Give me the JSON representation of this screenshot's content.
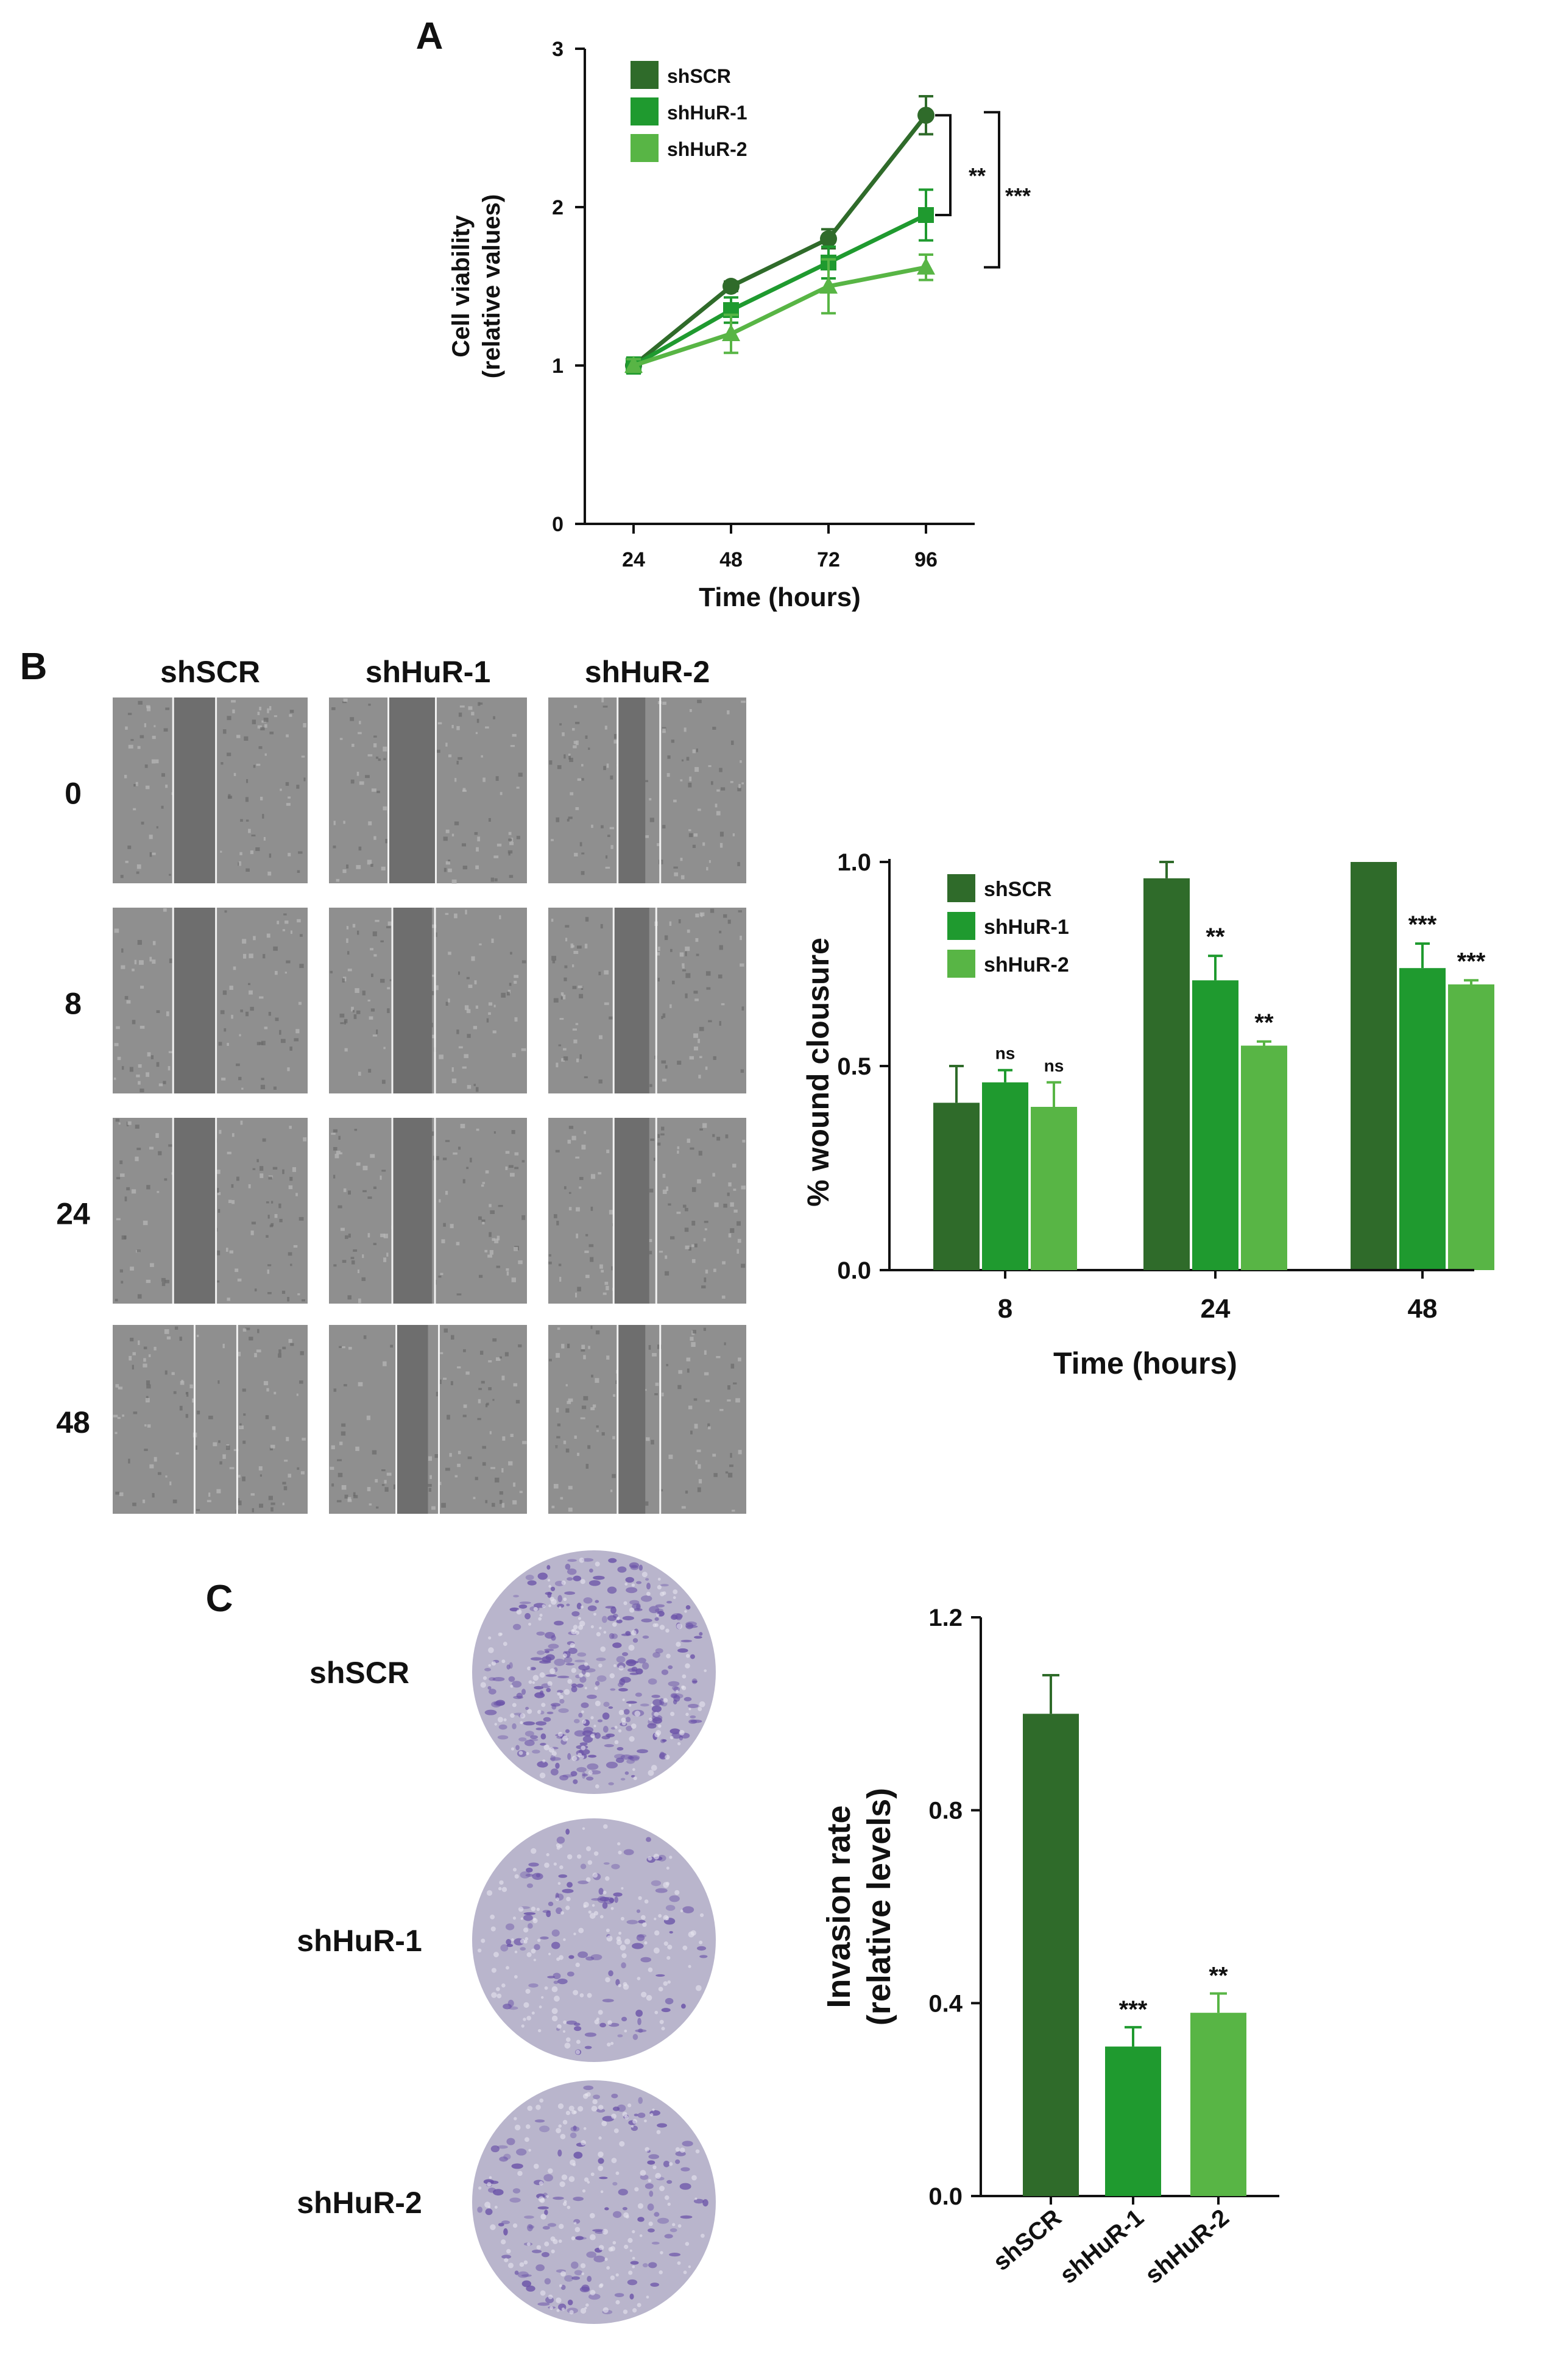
{
  "colors": {
    "shSCR": "#2f6b2a",
    "shHuR1": "#1f9a2f",
    "shHuR2": "#58b545",
    "axis": "#111111",
    "micrograph": "#8f8f8f",
    "wound": "#6e6e6e",
    "stain": "#6a52a8"
  },
  "panels": {
    "A": {
      "letter": "A",
      "chart_data": {
        "type": "line",
        "x": [
          24,
          48,
          72,
          96
        ],
        "xticks": [
          "24",
          "48",
          "72",
          "96"
        ],
        "yticks": [
          "0",
          "1",
          "2",
          "3"
        ],
        "ylim": [
          0,
          3
        ],
        "xlabel": "Time (hours)",
        "ylabel_line1": "Cell viability",
        "ylabel_line2": "(relative values)",
        "legend": [
          "shSCR",
          "shHuR-1",
          "shHuR-2"
        ],
        "series": [
          {
            "name": "shSCR",
            "marker": "circle",
            "values": [
              1.0,
              1.5,
              1.8,
              2.58
            ],
            "errors": [
              0.05,
              0.03,
              0.06,
              0.12
            ]
          },
          {
            "name": "shHuR-1",
            "marker": "square",
            "values": [
              1.0,
              1.35,
              1.65,
              1.95
            ],
            "errors": [
              0.05,
              0.08,
              0.1,
              0.16
            ]
          },
          {
            "name": "shHuR-2",
            "marker": "triangle",
            "values": [
              1.0,
              1.2,
              1.5,
              1.62
            ],
            "errors": [
              0.04,
              0.12,
              0.17,
              0.08
            ]
          }
        ],
        "annotations": [
          "**",
          "***"
        ]
      }
    },
    "B": {
      "letter": "B",
      "columns": [
        "shSCR",
        "shHuR-1",
        "shHuR-2"
      ],
      "rows": [
        "0",
        "8",
        "24",
        "48"
      ],
      "gap_widths": [
        [
          0.22,
          0.24,
          0.14
        ],
        [
          0.22,
          0.2,
          0.18
        ],
        [
          0.22,
          0.2,
          0.18
        ],
        [
          0.0,
          0.16,
          0.14
        ]
      ],
      "chart_data": {
        "type": "bar",
        "categories": [
          "8",
          "24",
          "48"
        ],
        "yticks": [
          "0.0",
          "0.5",
          "1.0"
        ],
        "ylim": [
          0,
          1.0
        ],
        "xlabel": "Time (hours)",
        "ylabel": "% wound clousure",
        "legend": [
          "shSCR",
          "shHuR-1",
          "shHuR-2"
        ],
        "series": [
          {
            "name": "shSCR",
            "values": [
              0.41,
              0.96,
              1.0
            ],
            "errors": [
              0.09,
              0.04,
              0.0
            ],
            "labels": [
              "",
              "",
              ""
            ]
          },
          {
            "name": "shHuR-1",
            "values": [
              0.46,
              0.71,
              0.74
            ],
            "errors": [
              0.03,
              0.06,
              0.06
            ],
            "labels": [
              "ns",
              "**",
              "***"
            ]
          },
          {
            "name": "shHuR-2",
            "values": [
              0.4,
              0.55,
              0.7
            ],
            "errors": [
              0.06,
              0.01,
              0.01
            ],
            "labels": [
              "ns",
              "**",
              "***"
            ]
          }
        ]
      }
    },
    "C": {
      "letter": "C",
      "rows": [
        "shSCR",
        "shHuR-1",
        "shHuR-2"
      ],
      "stain_density": [
        1.0,
        0.25,
        0.35
      ],
      "chart_data": {
        "type": "bar",
        "categories": [
          "shSCR",
          "shHuR-1",
          "shHuR-2"
        ],
        "values": [
          1.0,
          0.31,
          0.38
        ],
        "errors": [
          0.08,
          0.04,
          0.04
        ],
        "labels": [
          "",
          "***",
          "**"
        ],
        "yticks": [
          "0.0",
          "0.4",
          "0.8",
          "1.2"
        ],
        "ylim": [
          0,
          1.2
        ],
        "ylabel_line1": "Invasion rate",
        "ylabel_line2": "(relative levels)"
      }
    }
  }
}
